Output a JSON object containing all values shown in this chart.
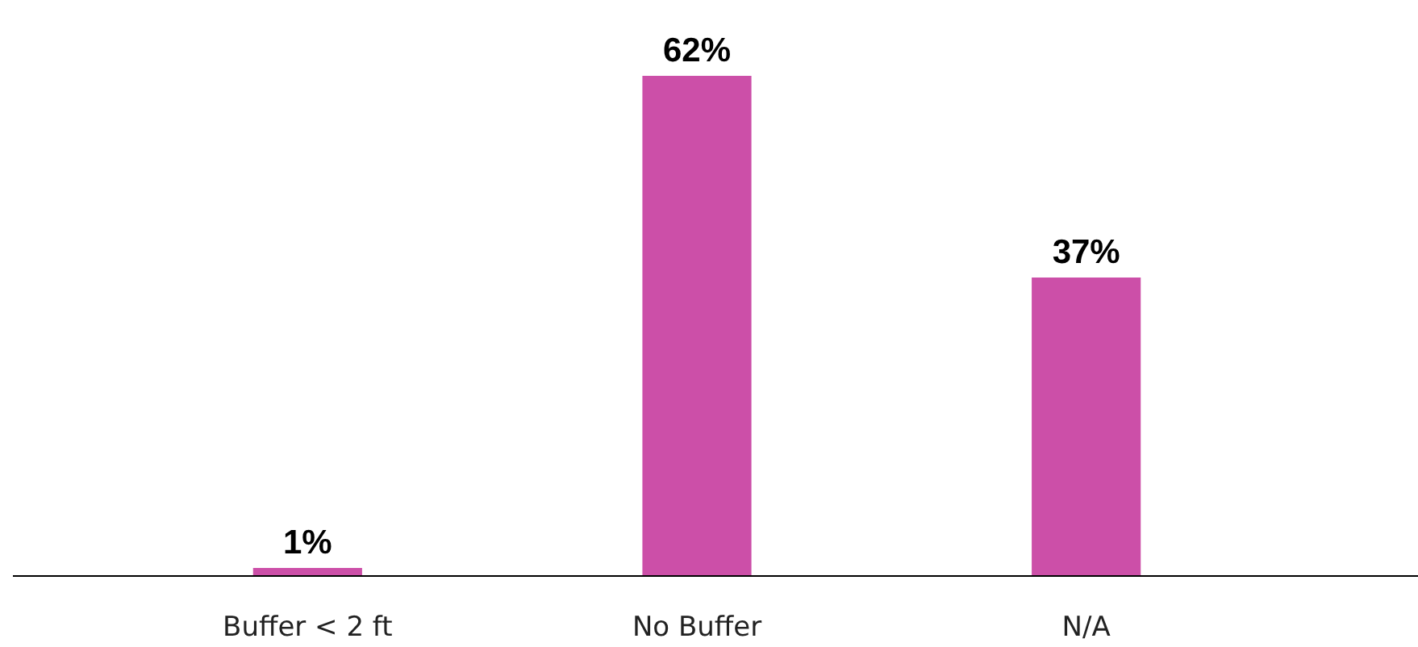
{
  "chart_data": {
    "type": "bar",
    "categories": [
      "Buffer < 2 ft",
      "No Buffer",
      "N/A"
    ],
    "values": [
      1,
      62,
      37
    ],
    "color": "#cc4fa8",
    "value_labels": [
      "1%",
      "62%",
      "37%"
    ]
  }
}
